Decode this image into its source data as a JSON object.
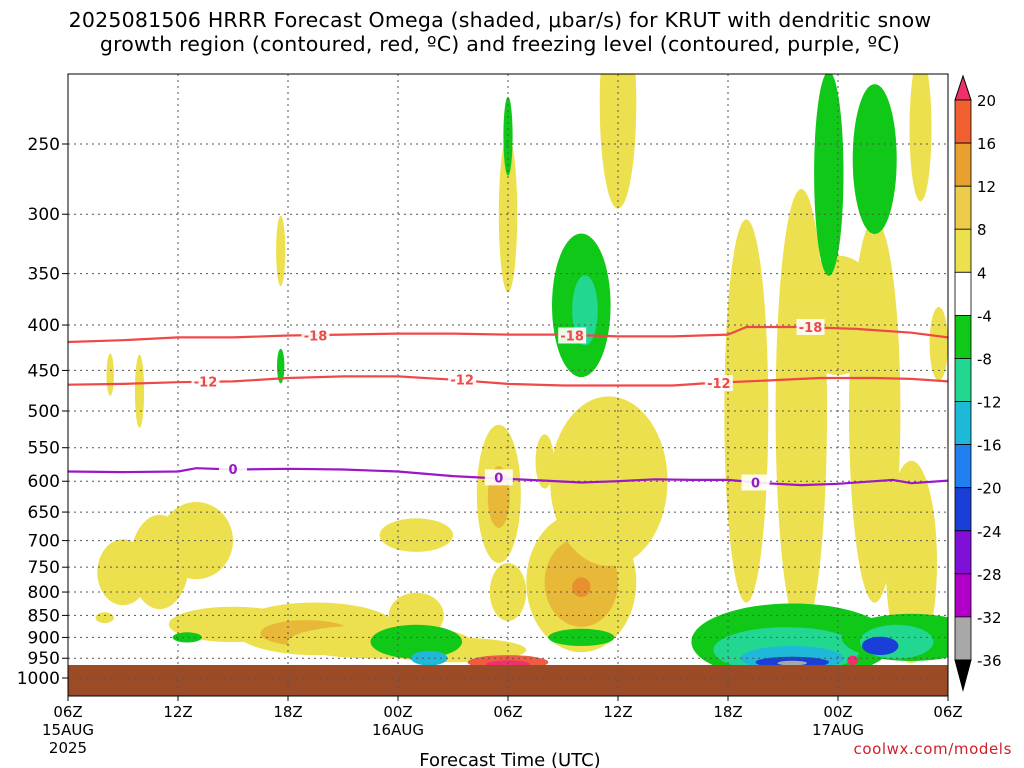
{
  "title": {
    "line1": "2025081506 HRRR Forecast Omega (shaded, μbar/s) for KRUT with dendritic snow",
    "line2": "growth region (contoured, red, ºC) and freezing level (contoured, purple, ºC)"
  },
  "credit": "coolwx.com/models",
  "chart_data": {
    "type": "heatmap",
    "xlabel": "Forecast Time (UTC)",
    "ylabel": "",
    "x_range_hours": [
      0,
      48
    ],
    "y_range_mb": [
      1050,
      200
    ],
    "y_scale": "log-pressure",
    "grid": true,
    "x_ticks": [
      {
        "h": 0,
        "label": "06Z",
        "sub": "15AUG",
        "sub2": "2025"
      },
      {
        "h": 6,
        "label": "12Z"
      },
      {
        "h": 12,
        "label": "18Z"
      },
      {
        "h": 18,
        "label": "00Z",
        "sub": "16AUG"
      },
      {
        "h": 24,
        "label": "06Z"
      },
      {
        "h": 30,
        "label": "12Z"
      },
      {
        "h": 36,
        "label": "18Z"
      },
      {
        "h": 42,
        "label": "00Z",
        "sub": "17AUG"
      },
      {
        "h": 48,
        "label": "06Z"
      }
    ],
    "y_ticks": [
      250,
      300,
      350,
      400,
      450,
      500,
      550,
      600,
      650,
      700,
      750,
      800,
      850,
      900,
      950,
      1000
    ],
    "colorbar": {
      "labels": [
        "20",
        "16",
        "12",
        "8",
        "4",
        "-4",
        "-8",
        "-12",
        "-16",
        "-20",
        "-24",
        "-28",
        "-32",
        "-36"
      ],
      "colors": [
        "#f0306a",
        "#f06030",
        "#e8a030",
        "#eccc4a",
        "#ece04e",
        "#ffffff",
        "#10c818",
        "#22d890",
        "#1eb8d8",
        "#2080f0",
        "#1a3ed8",
        "#8010d8",
        "#b000c8",
        "#a8a8a8",
        "#000000"
      ]
    },
    "contours": {
      "dendritic_snow_growth": [
        {
          "label": "-18",
          "color": "#f04848",
          "points": [
            [
              0,
              418
            ],
            [
              3,
              416
            ],
            [
              6,
              413
            ],
            [
              9,
              413
            ],
            [
              12,
              411
            ],
            [
              15,
              410
            ],
            [
              18,
              409
            ],
            [
              21,
              409
            ],
            [
              24,
              410
            ],
            [
              27,
              410
            ],
            [
              30,
              412
            ],
            [
              33,
              412
            ],
            [
              36,
              410
            ],
            [
              37,
              402
            ],
            [
              40,
              402
            ],
            [
              43,
              404
            ],
            [
              46,
              408
            ],
            [
              48,
              413
            ]
          ],
          "label_at": [
            [
              13.5,
              411
            ],
            [
              27.5,
              411
            ],
            [
              40.5,
              402
            ]
          ]
        },
        {
          "label": "-12",
          "color": "#f04848",
          "points": [
            [
              0,
              467
            ],
            [
              3,
              466
            ],
            [
              6,
              464
            ],
            [
              9,
              463
            ],
            [
              12,
              459
            ],
            [
              15,
              457
            ],
            [
              18,
              457
            ],
            [
              21,
              461
            ],
            [
              24,
              466
            ],
            [
              27,
              468
            ],
            [
              30,
              468
            ],
            [
              33,
              468
            ],
            [
              35,
              465
            ],
            [
              38,
              462
            ],
            [
              41,
              459
            ],
            [
              44,
              459
            ],
            [
              46,
              460
            ],
            [
              48,
              463
            ]
          ],
          "label_at": [
            [
              7.5,
              463
            ],
            [
              21.5,
              461
            ],
            [
              35.5,
              465
            ]
          ]
        }
      ],
      "freezing_level": [
        {
          "label": "0",
          "color": "#9a18c8",
          "points": [
            [
              0,
              585
            ],
            [
              3,
              586
            ],
            [
              6,
              585
            ],
            [
              7,
              580
            ],
            [
              9,
              582
            ],
            [
              12,
              581
            ],
            [
              15,
              582
            ],
            [
              18,
              585
            ],
            [
              21,
              592
            ],
            [
              23,
              595
            ],
            [
              26,
              599
            ],
            [
              28,
              602
            ],
            [
              30,
              600
            ],
            [
              32,
              597
            ],
            [
              34,
              598
            ],
            [
              36,
              598
            ],
            [
              38,
              603
            ],
            [
              40,
              606
            ],
            [
              42,
              604
            ],
            [
              44,
              600
            ],
            [
              45,
              598
            ],
            [
              46,
              603
            ],
            [
              48,
              599
            ]
          ],
          "label_at": [
            [
              9,
              581
            ],
            [
              23.5,
              594
            ],
            [
              37.5,
              602
            ]
          ]
        }
      ]
    },
    "omega_regions": [
      {
        "value": 4,
        "h": 2,
        "p": 855,
        "dh": 0.5,
        "dp": 12
      },
      {
        "value": 4,
        "h": 3,
        "p": 760,
        "dh": 1.4,
        "dp": 65
      },
      {
        "value": 4,
        "h": 5,
        "p": 740,
        "dh": 1.6,
        "dp": 90
      },
      {
        "value": 4,
        "h": 7,
        "p": 700,
        "dh": 2.0,
        "dp": 70
      },
      {
        "value": 4,
        "h": 9,
        "p": 870,
        "dh": 3.5,
        "dp": 40
      },
      {
        "value": 4,
        "h": 13.5,
        "p": 880,
        "dh": 4.5,
        "dp": 60
      },
      {
        "value": 8,
        "h": 13,
        "p": 890,
        "dh": 2.5,
        "dp": 30
      },
      {
        "value": 4,
        "h": 17,
        "p": 910,
        "dh": 5.0,
        "dp": 40
      },
      {
        "value": 4,
        "h": 19,
        "p": 850,
        "dh": 1.5,
        "dp": 50
      },
      {
        "value": 4,
        "h": 19,
        "p": 690,
        "dh": 2.0,
        "dp": 30
      },
      {
        "value": 4,
        "h": 21,
        "p": 930,
        "dh": 4.0,
        "dp": 30
      },
      {
        "value": 4,
        "h": 23.5,
        "p": 620,
        "dh": 1.2,
        "dp": 110
      },
      {
        "value": 8,
        "h": 23.5,
        "p": 625,
        "dh": 0.6,
        "dp": 50
      },
      {
        "value": 4,
        "h": 24,
        "p": 800,
        "dh": 1.0,
        "dp": 60
      },
      {
        "value": 4,
        "h": 24,
        "p": 300,
        "dh": 0.5,
        "dp": 60
      },
      {
        "value": 4,
        "h": 26,
        "p": 570,
        "dh": 0.5,
        "dp": 40
      },
      {
        "value": 4,
        "h": 28,
        "p": 780,
        "dh": 3.0,
        "dp": 140
      },
      {
        "value": 8,
        "h": 28,
        "p": 780,
        "dh": 2.0,
        "dp": 90
      },
      {
        "value": 12,
        "h": 28,
        "p": 790,
        "dh": 0.5,
        "dp": 20
      },
      {
        "value": 4,
        "h": 29.5,
        "p": 600,
        "dh": 3.2,
        "dp": 130
      },
      {
        "value": 4,
        "h": 30,
        "p": 225,
        "dh": 1.0,
        "dp": 60
      },
      {
        "value": 4,
        "h": 37,
        "p": 500,
        "dh": 1.2,
        "dp": 230
      },
      {
        "value": 4,
        "h": 40,
        "p": 500,
        "dh": 1.4,
        "dp": 260
      },
      {
        "value": 4,
        "h": 42,
        "p": 390,
        "dh": 2.4,
        "dp": 60
      },
      {
        "value": 4,
        "h": 44,
        "p": 500,
        "dh": 1.4,
        "dp": 230
      },
      {
        "value": 4,
        "h": 46,
        "p": 740,
        "dh": 1.4,
        "dp": 190
      },
      {
        "value": 4,
        "h": 46.5,
        "p": 240,
        "dh": 0.6,
        "dp": 45
      },
      {
        "value": 4,
        "h": 47.5,
        "p": 420,
        "dh": 0.5,
        "dp": 40
      },
      {
        "value": 4,
        "h": 2.3,
        "p": 455,
        "dh": 0.2,
        "dp": 25
      },
      {
        "value": 4,
        "h": 3.9,
        "p": 475,
        "dh": 0.25,
        "dp": 45
      },
      {
        "value": 4,
        "h": 11.6,
        "p": 330,
        "dh": 0.25,
        "dp": 30
      },
      {
        "value": -8,
        "h": 28,
        "p": 380,
        "dh": 1.6,
        "dp": 70
      },
      {
        "value": -12,
        "h": 28.2,
        "p": 385,
        "dh": 0.7,
        "dp": 35
      },
      {
        "value": -8,
        "h": 41.5,
        "p": 270,
        "dh": 0.8,
        "dp": 70
      },
      {
        "value": -8,
        "h": 44,
        "p": 260,
        "dh": 1.2,
        "dp": 50
      },
      {
        "value": -8,
        "h": 24,
        "p": 245,
        "dh": 0.25,
        "dp": 25
      },
      {
        "value": -8,
        "h": 11.6,
        "p": 445,
        "dh": 0.2,
        "dp": 20
      },
      {
        "value": -8,
        "h": 6.5,
        "p": 900,
        "dh": 0.8,
        "dp": 12
      },
      {
        "value": -8,
        "h": 19,
        "p": 910,
        "dh": 2.5,
        "dp": 40
      },
      {
        "value": -16,
        "h": 19.7,
        "p": 950,
        "dh": 1.0,
        "dp": 18
      },
      {
        "value": -8,
        "h": 28,
        "p": 900,
        "dh": 1.8,
        "dp": 20
      },
      {
        "value": -8,
        "h": 39.5,
        "p": 910,
        "dh": 5.5,
        "dp": 90
      },
      {
        "value": -12,
        "h": 39.2,
        "p": 930,
        "dh": 4.0,
        "dp": 55
      },
      {
        "value": -16,
        "h": 39.5,
        "p": 950,
        "dh": 2.8,
        "dp": 30
      },
      {
        "value": -24,
        "h": 39.5,
        "p": 960,
        "dh": 2.0,
        "dp": 14
      },
      {
        "value": -36,
        "h": 39.5,
        "p": 962,
        "dh": 0.8,
        "dp": 6
      },
      {
        "value": -8,
        "h": 46,
        "p": 900,
        "dh": 3.8,
        "dp": 55
      },
      {
        "value": -12,
        "h": 45.2,
        "p": 910,
        "dh": 2.0,
        "dp": 40
      },
      {
        "value": -24,
        "h": 44.3,
        "p": 920,
        "dh": 1.0,
        "dp": 22
      },
      {
        "value": 16,
        "h": 24,
        "p": 960,
        "dh": 2.2,
        "dp": 18
      },
      {
        "value": 20,
        "h": 24,
        "p": 965,
        "dh": 1.2,
        "dp": 10
      },
      {
        "value": 20,
        "h": 42.8,
        "p": 955,
        "dh": 0.3,
        "dp": 12
      }
    ]
  }
}
